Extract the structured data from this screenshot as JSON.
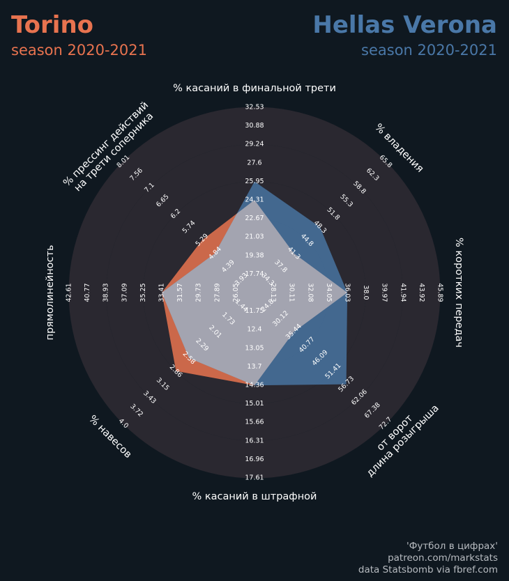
{
  "header": {
    "left_team": "Torino",
    "left_season": "season 2020-2021",
    "right_team": "Hellas Verona",
    "right_season": "season 2020-2021"
  },
  "credits": [
    "'Футбол в цифрах'",
    "patreon.com/markstats",
    "data Statsbomb via fbref.com"
  ],
  "colors": {
    "background": "#0f1820",
    "rings": "#2a2830",
    "left_team": "#e8734f",
    "right_team": "#4a78a8",
    "overlap": "#a7a6b1",
    "text": "#ffffff"
  },
  "chart_data": {
    "type": "radar",
    "levels": 10,
    "axes": [
      {
        "label": [
          "% касаний в финальной трети"
        ],
        "ticks": [
          "17.74",
          "19.38",
          "21.03",
          "22.67",
          "24.31",
          "25.95",
          "27.6",
          "29.24",
          "30.88",
          "32.53"
        ],
        "range": [
          16.1,
          32.53
        ]
      },
      {
        "label": [
          "% владения"
        ],
        "ticks": [
          "34.3",
          "37.8",
          "41.3",
          "44.8",
          "48.3",
          "51.8",
          "55.3",
          "58.8",
          "62.3",
          "65.8"
        ],
        "range": [
          30.8,
          65.8
        ]
      },
      {
        "label": [
          "% коротких передач"
        ],
        "ticks": [
          "28.13",
          "30.11",
          "32.08",
          "34.05",
          "36.03",
          "38.0",
          "39.97",
          "41.94",
          "43.92",
          "45.89"
        ],
        "range": [
          26.16,
          45.89
        ]
      },
      {
        "label": [
          "длина розыгрыша",
          "от ворот"
        ],
        "ticks": [
          "24.8",
          "30.12",
          "35.44",
          "40.77",
          "46.09",
          "51.41",
          "56.73",
          "62.06",
          "67.38",
          "72.7"
        ],
        "range": [
          19.48,
          72.7
        ]
      },
      {
        "label": [
          "% касаний в штрафной"
        ],
        "ticks": [
          "11.75",
          "12.4",
          "13.05",
          "13.7",
          "14.36",
          "15.01",
          "15.66",
          "16.31",
          "16.96",
          "17.61"
        ],
        "range": [
          11.1,
          17.61
        ]
      },
      {
        "label": [
          "% навесов"
        ],
        "ticks": [
          "1.44",
          "1.73",
          "2.01",
          "2.29",
          "2.58",
          "2.86",
          "3.15",
          "3.43",
          "3.72",
          "4.0"
        ],
        "range": [
          1.16,
          4.0
        ]
      },
      {
        "label": [
          "прямолинейность"
        ],
        "ticks": [
          "26.05",
          "27.89",
          "29.73",
          "31.57",
          "33.41",
          "35.25",
          "37.09",
          "38.93",
          "40.77",
          "42.61"
        ],
        "range": [
          24.21,
          42.61
        ]
      },
      {
        "label": [
          "% прессинг действий",
          "на трети соперника"
        ],
        "ticks": [
          "3.93",
          "4.39",
          "4.84",
          "5.29",
          "5.74",
          "6.2",
          "6.65",
          "7.1",
          "7.56",
          "8.01"
        ],
        "range": [
          3.48,
          8.01
        ]
      }
    ],
    "series": [
      {
        "name": "Torino",
        "values": [
          24.31,
          41.3,
          36.03,
          35.44,
          14.36,
          2.86,
          33.41,
          5.29
        ]
      },
      {
        "name": "Hellas Verona",
        "values": [
          25.95,
          48.3,
          36.03,
          56.73,
          14.36,
          2.58,
          33.41,
          4.84
        ]
      }
    ]
  }
}
